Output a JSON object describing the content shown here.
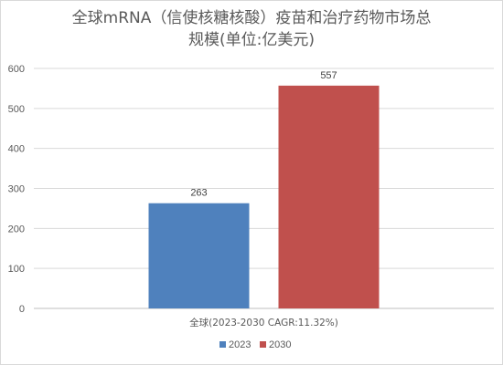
{
  "chart_data": {
    "type": "bar",
    "title_line1": "全球mRNA（信使核糖核酸）疫苗和治疗药物市场总",
    "title_line2": "规模(单位:亿美元)",
    "categories": [
      "全球(2023-2030 CAGR:11.32%)"
    ],
    "series": [
      {
        "name": "2023",
        "values": [
          263
        ],
        "color": "#4f81bd",
        "label": "263"
      },
      {
        "name": "2030",
        "values": [
          557
        ],
        "color": "#c0504d",
        "label": "557"
      }
    ],
    "ylim": [
      0,
      600
    ],
    "yticks": [
      "0",
      "100",
      "200",
      "300",
      "400",
      "500",
      "600"
    ],
    "grid": true,
    "legend": "bottom"
  }
}
